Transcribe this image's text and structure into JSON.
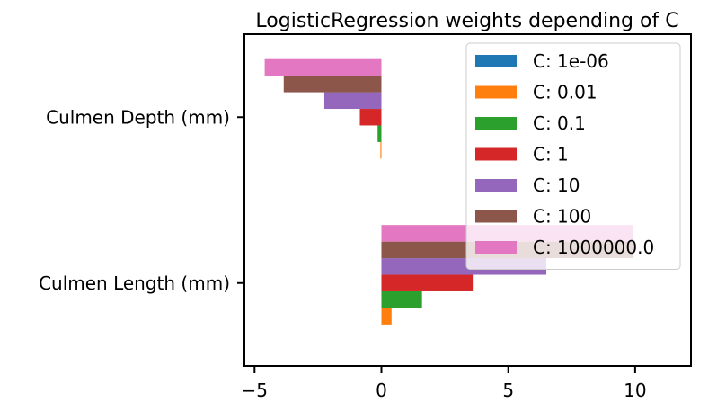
{
  "chart_data": {
    "type": "bar",
    "orientation": "horizontal",
    "title": "LogisticRegression weights depending of C",
    "xlabel": "",
    "ylabel": "",
    "categories": [
      "Culmen Length (mm)",
      "Culmen Depth (mm)"
    ],
    "xlim": [
      -5.4,
      12.2
    ],
    "xticks": [
      -5,
      0,
      5,
      10
    ],
    "grid": false,
    "legend_position": "top-right",
    "series": [
      {
        "name": "C: 1e-06",
        "color": "#1f77b4",
        "values": [
          0.0,
          0.0
        ]
      },
      {
        "name": "C: 0.01",
        "color": "#ff7f0e",
        "values": [
          0.4,
          -0.04
        ]
      },
      {
        "name": "C: 0.1",
        "color": "#2ca02c",
        "values": [
          1.6,
          -0.15
        ]
      },
      {
        "name": "C: 1",
        "color": "#d62728",
        "values": [
          3.6,
          -0.85
        ]
      },
      {
        "name": "C: 10",
        "color": "#9467bd",
        "values": [
          6.5,
          -2.25
        ]
      },
      {
        "name": "C: 100",
        "color": "#8c564b",
        "values": [
          9.9,
          -3.85
        ]
      },
      {
        "name": "C: 1000000.0",
        "color": "#e377c2",
        "values": [
          9.9,
          -4.6
        ]
      }
    ]
  }
}
